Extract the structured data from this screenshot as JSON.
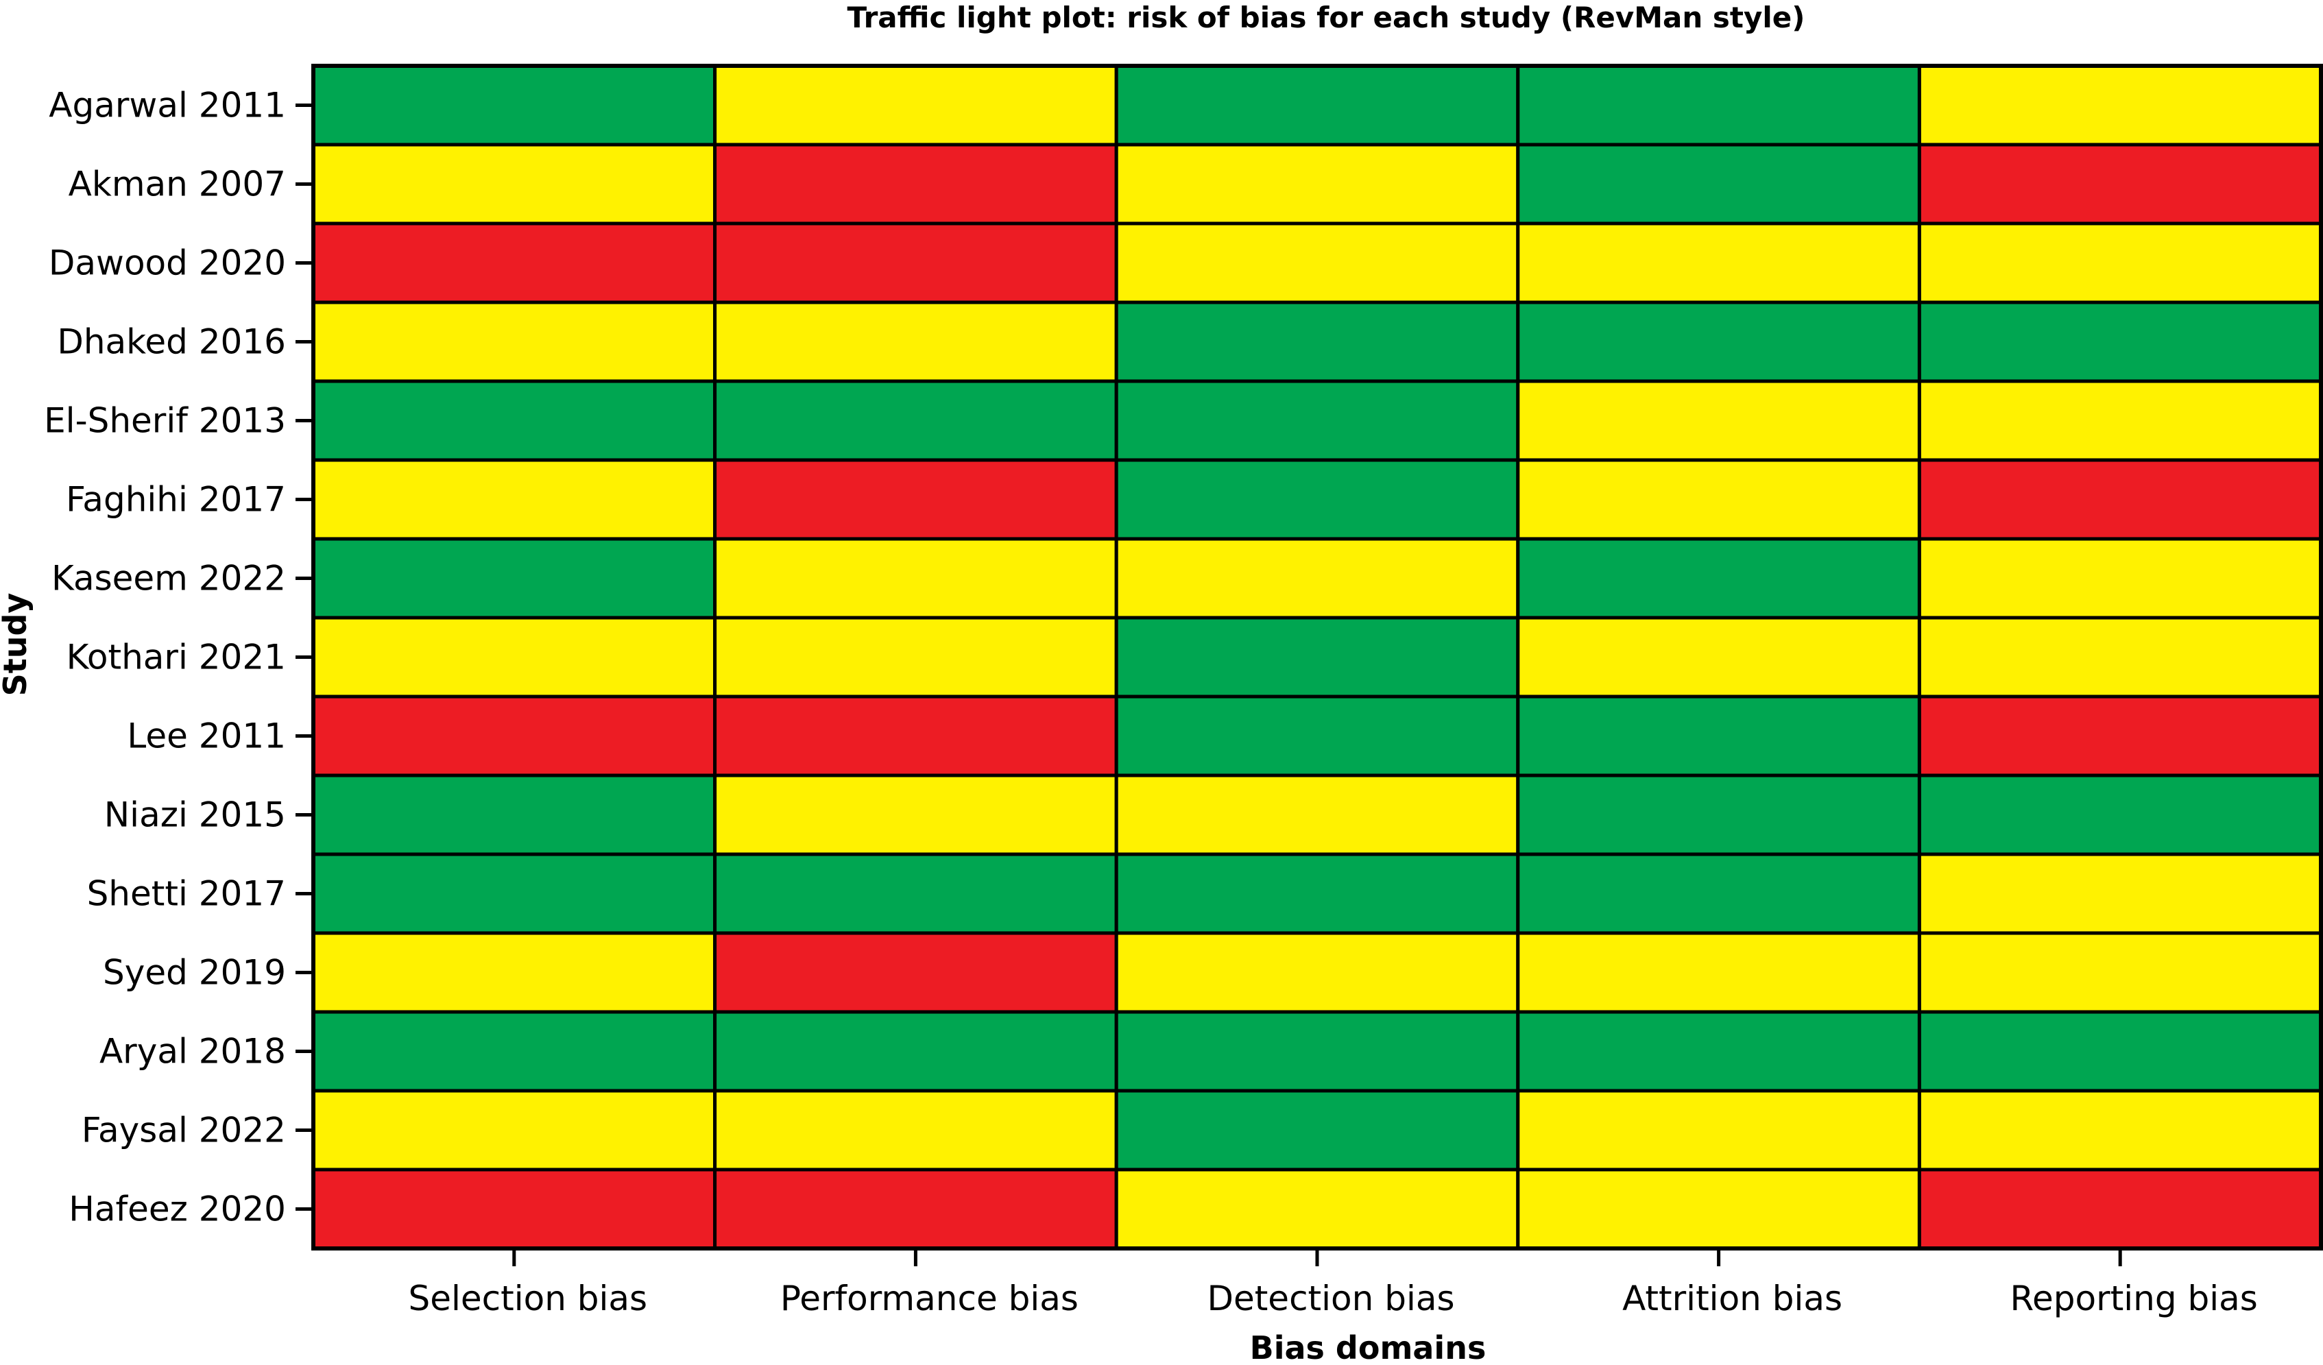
{
  "chart_data": {
    "type": "heatmap",
    "title": "Traffic light plot: risk of bias for each study (RevMan style)",
    "xlabel": "Bias domains",
    "ylabel": "Study",
    "domains": [
      "Selection bias",
      "Performance bias",
      "Detection bias",
      "Attrition bias",
      "Reporting bias"
    ],
    "studies": [
      "Agarwal 2011",
      "Akman 2007",
      "Dawood 2020",
      "Dhaked 2016",
      "El-Sherif 2013",
      "Faghihi 2017",
      "Kaseem 2022",
      "Kothari 2021",
      "Lee 2011",
      "Niazi 2015",
      "Shetti 2017",
      "Syed 2019",
      "Aryal 2018",
      "Faysal 2022",
      "Hafeez 2020"
    ],
    "values": [
      [
        "low",
        "unclear",
        "low",
        "low",
        "unclear"
      ],
      [
        "unclear",
        "high",
        "unclear",
        "low",
        "high"
      ],
      [
        "high",
        "high",
        "unclear",
        "unclear",
        "unclear"
      ],
      [
        "unclear",
        "unclear",
        "low",
        "low",
        "low"
      ],
      [
        "low",
        "low",
        "low",
        "unclear",
        "unclear"
      ],
      [
        "unclear",
        "high",
        "low",
        "unclear",
        "high"
      ],
      [
        "low",
        "unclear",
        "unclear",
        "low",
        "unclear"
      ],
      [
        "unclear",
        "unclear",
        "low",
        "unclear",
        "unclear"
      ],
      [
        "high",
        "high",
        "low",
        "low",
        "high"
      ],
      [
        "low",
        "unclear",
        "unclear",
        "low",
        "low"
      ],
      [
        "low",
        "low",
        "low",
        "low",
        "unclear"
      ],
      [
        "unclear",
        "high",
        "unclear",
        "unclear",
        "unclear"
      ],
      [
        "low",
        "low",
        "low",
        "low",
        "low"
      ],
      [
        "unclear",
        "unclear",
        "low",
        "unclear",
        "unclear"
      ],
      [
        "high",
        "high",
        "unclear",
        "unclear",
        "high"
      ]
    ],
    "colors": {
      "low": "#00a651",
      "unclear": "#fff200",
      "high": "#ed1c24"
    },
    "grid": true
  }
}
